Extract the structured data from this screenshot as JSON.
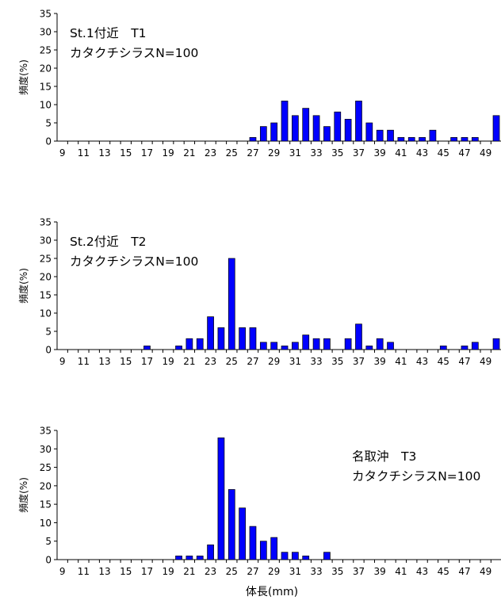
{
  "chart_data": [
    {
      "type": "bar",
      "title": "St.1付近　T1",
      "subtitle": "カタクチシラスN=100",
      "ylabel": "頻度(%)",
      "xlabel": "",
      "ylim": [
        0,
        35
      ],
      "yticks": [
        "0",
        "5",
        "10",
        "15",
        "20",
        "25",
        "30",
        "35"
      ],
      "x": [
        9,
        10,
        11,
        12,
        13,
        14,
        15,
        16,
        17,
        18,
        19,
        20,
        21,
        22,
        23,
        24,
        25,
        26,
        27,
        28,
        29,
        30,
        31,
        32,
        33,
        34,
        35,
        36,
        37,
        38,
        39,
        40,
        41,
        42,
        43,
        44,
        45,
        46,
        47,
        48,
        49,
        50
      ],
      "values": [
        0,
        0,
        0,
        0,
        0,
        0,
        0,
        0,
        0,
        0,
        0,
        0,
        0,
        0,
        0,
        0,
        0,
        0,
        1,
        4,
        5,
        11,
        7,
        9,
        7,
        4,
        8,
        6,
        11,
        5,
        3,
        3,
        1,
        1,
        1,
        3,
        0,
        1,
        1,
        1,
        0,
        7
      ],
      "xtick_labels": [
        "9",
        "11",
        "13",
        "15",
        "17",
        "19",
        "21",
        "23",
        "25",
        "27",
        "29",
        "31",
        "33",
        "35",
        "37",
        "39",
        "41",
        "43",
        "45",
        "47",
        "49"
      ],
      "grid": false,
      "bar_color": "#0000ff",
      "label_position": "top-left"
    },
    {
      "type": "bar",
      "title": "St.2付近　T2",
      "subtitle": "カタクチシラスN=100",
      "ylabel": "頻度(%)",
      "xlabel": "",
      "ylim": [
        0,
        35
      ],
      "yticks": [
        "0",
        "5",
        "10",
        "15",
        "20",
        "25",
        "30",
        "35"
      ],
      "x": [
        9,
        10,
        11,
        12,
        13,
        14,
        15,
        16,
        17,
        18,
        19,
        20,
        21,
        22,
        23,
        24,
        25,
        26,
        27,
        28,
        29,
        30,
        31,
        32,
        33,
        34,
        35,
        36,
        37,
        38,
        39,
        40,
        41,
        42,
        43,
        44,
        45,
        46,
        47,
        48,
        49,
        50
      ],
      "values": [
        0,
        0,
        0,
        0,
        0,
        0,
        0,
        0,
        1,
        0,
        0,
        1,
        3,
        3,
        9,
        6,
        25,
        6,
        6,
        2,
        2,
        1,
        2,
        4,
        3,
        3,
        0,
        3,
        7,
        1,
        3,
        2,
        0,
        0,
        0,
        0,
        1,
        0,
        1,
        2,
        0,
        3
      ],
      "xtick_labels": [
        "9",
        "11",
        "13",
        "15",
        "17",
        "19",
        "21",
        "23",
        "25",
        "27",
        "29",
        "31",
        "33",
        "35",
        "37",
        "39",
        "41",
        "43",
        "45",
        "47",
        "49"
      ],
      "grid": false,
      "bar_color": "#0000ff",
      "label_position": "top-left"
    },
    {
      "type": "bar",
      "title": "名取沖　T3",
      "subtitle": "カタクチシラスN=100",
      "ylabel": "頻度(%)",
      "xlabel": "体長(mm)",
      "ylim": [
        0,
        35
      ],
      "yticks": [
        "0",
        "5",
        "10",
        "15",
        "20",
        "25",
        "30",
        "35"
      ],
      "x": [
        9,
        10,
        11,
        12,
        13,
        14,
        15,
        16,
        17,
        18,
        19,
        20,
        21,
        22,
        23,
        24,
        25,
        26,
        27,
        28,
        29,
        30,
        31,
        32,
        33,
        34,
        35,
        36,
        37,
        38,
        39,
        40,
        41,
        42,
        43,
        44,
        45,
        46,
        47,
        48,
        49,
        50
      ],
      "values": [
        0,
        0,
        0,
        0,
        0,
        0,
        0,
        0,
        0,
        0,
        0,
        1,
        1,
        1,
        4,
        33,
        19,
        14,
        9,
        5,
        6,
        2,
        2,
        1,
        0,
        2,
        0,
        0,
        0,
        0,
        0,
        0,
        0,
        0,
        0,
        0,
        0,
        0,
        0,
        0,
        0,
        0
      ],
      "xtick_labels": [
        "9",
        "11",
        "13",
        "15",
        "17",
        "19",
        "21",
        "23",
        "25",
        "27",
        "29",
        "31",
        "33",
        "35",
        "37",
        "39",
        "41",
        "43",
        "45",
        "47",
        "49"
      ],
      "grid": false,
      "bar_color": "#0000ff",
      "label_position": "top-right"
    }
  ]
}
